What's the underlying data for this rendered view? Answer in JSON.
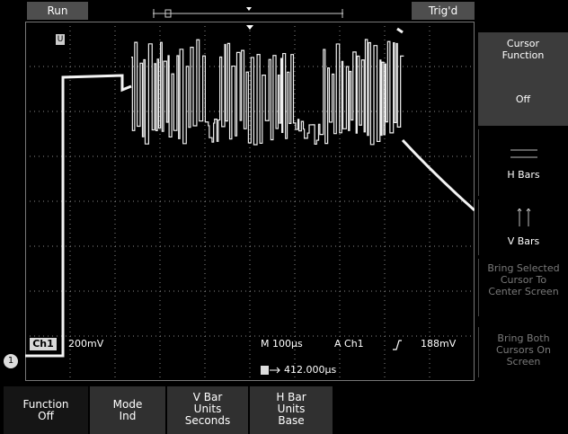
{
  "status": {
    "run": "Run",
    "trigger": "Trig'd"
  },
  "channel": {
    "badge": "Ch1",
    "scale": "200mV",
    "marker": "1",
    "ref_marker": "U"
  },
  "timebase": {
    "main": "M 100µs",
    "trigger_source": "A  Ch1",
    "trigger_slope_icon": "rising-edge-icon",
    "trigger_level": "188mV",
    "delay": "412.000µs",
    "delay_icon": "trigger-delay-icon"
  },
  "side_menu": {
    "title": "Cursor Function",
    "value": "Off",
    "h_bars": "H Bars",
    "v_bars": "V Bars",
    "bring_selected": "Bring Selected Cursor To Center Screen",
    "bring_both": "Bring Both Cursors On Screen"
  },
  "bottom_menu": [
    {
      "line1": "Function",
      "line2": "Off"
    },
    {
      "line1": "Mode",
      "line2": "Ind"
    },
    {
      "line1": "V Bar",
      "line2": "Units",
      "line3": "Seconds"
    },
    {
      "line1": "H Bar",
      "line2": "Units",
      "line3": "Base"
    }
  ],
  "colors": {
    "trace": "#f2f2f2",
    "grid": "#9a9a9a",
    "menu": "#3c3c3c"
  }
}
